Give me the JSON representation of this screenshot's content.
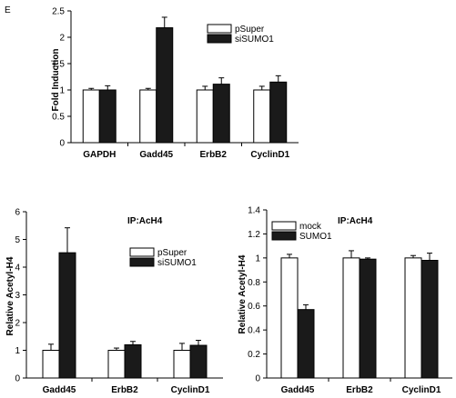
{
  "panel_letter": "E",
  "chart_data": [
    {
      "type": "bar",
      "title": "",
      "annotation": "",
      "xlabel": "",
      "ylabel": "Fold Induction",
      "ylim": [
        0,
        2.5
      ],
      "yticks": [
        "0",
        "0.5",
        "1",
        "1.5",
        "2",
        "2.5"
      ],
      "categories": [
        "GAPDH",
        "Gadd45",
        "ErbB2",
        "CyclinD1"
      ],
      "legend_position": "top-right",
      "series": [
        {
          "name": "pSuper",
          "color": "#ffffff",
          "values": [
            1.0,
            1.0,
            1.0,
            1.0
          ],
          "errors": [
            0.03,
            0.03,
            0.07,
            0.07
          ]
        },
        {
          "name": "siSUMO1",
          "color": "#1a1a1a",
          "values": [
            1.0,
            2.18,
            1.11,
            1.15
          ],
          "errors": [
            0.08,
            0.2,
            0.12,
            0.12
          ]
        }
      ]
    },
    {
      "type": "bar",
      "title": "",
      "annotation": "IP:AcH4",
      "xlabel": "",
      "ylabel": "Relative Acetyl-H4",
      "ylim": [
        0,
        6
      ],
      "yticks": [
        "0",
        "1",
        "2",
        "3",
        "4",
        "5",
        "6"
      ],
      "categories": [
        "Gadd45",
        "ErbB2",
        "CyclinD1"
      ],
      "legend_position": "right",
      "series": [
        {
          "name": "pSuper",
          "color": "#ffffff",
          "values": [
            1.0,
            1.0,
            1.0
          ],
          "errors": [
            0.22,
            0.08,
            0.25
          ]
        },
        {
          "name": "siSUMO1",
          "color": "#1a1a1a",
          "values": [
            4.52,
            1.2,
            1.18
          ],
          "errors": [
            0.9,
            0.12,
            0.18
          ]
        }
      ]
    },
    {
      "type": "bar",
      "title": "",
      "annotation": "IP:AcH4",
      "xlabel": "",
      "ylabel": "Relative Acetyl-H4",
      "ylim": [
        0,
        1.4
      ],
      "yticks": [
        "0",
        "0.2",
        "0.4",
        "0.6",
        "0.8",
        "1",
        "1.2",
        "1.4"
      ],
      "categories": [
        "Gadd45",
        "ErbB2",
        "CyclinD1"
      ],
      "legend_position": "top-left",
      "series": [
        {
          "name": "mock",
          "color": "#ffffff",
          "values": [
            1.0,
            1.0,
            1.0
          ],
          "errors": [
            0.03,
            0.06,
            0.02
          ]
        },
        {
          "name": "SUMO1",
          "color": "#1a1a1a",
          "values": [
            0.57,
            0.99,
            0.98
          ],
          "errors": [
            0.04,
            0.01,
            0.06
          ]
        }
      ]
    }
  ]
}
